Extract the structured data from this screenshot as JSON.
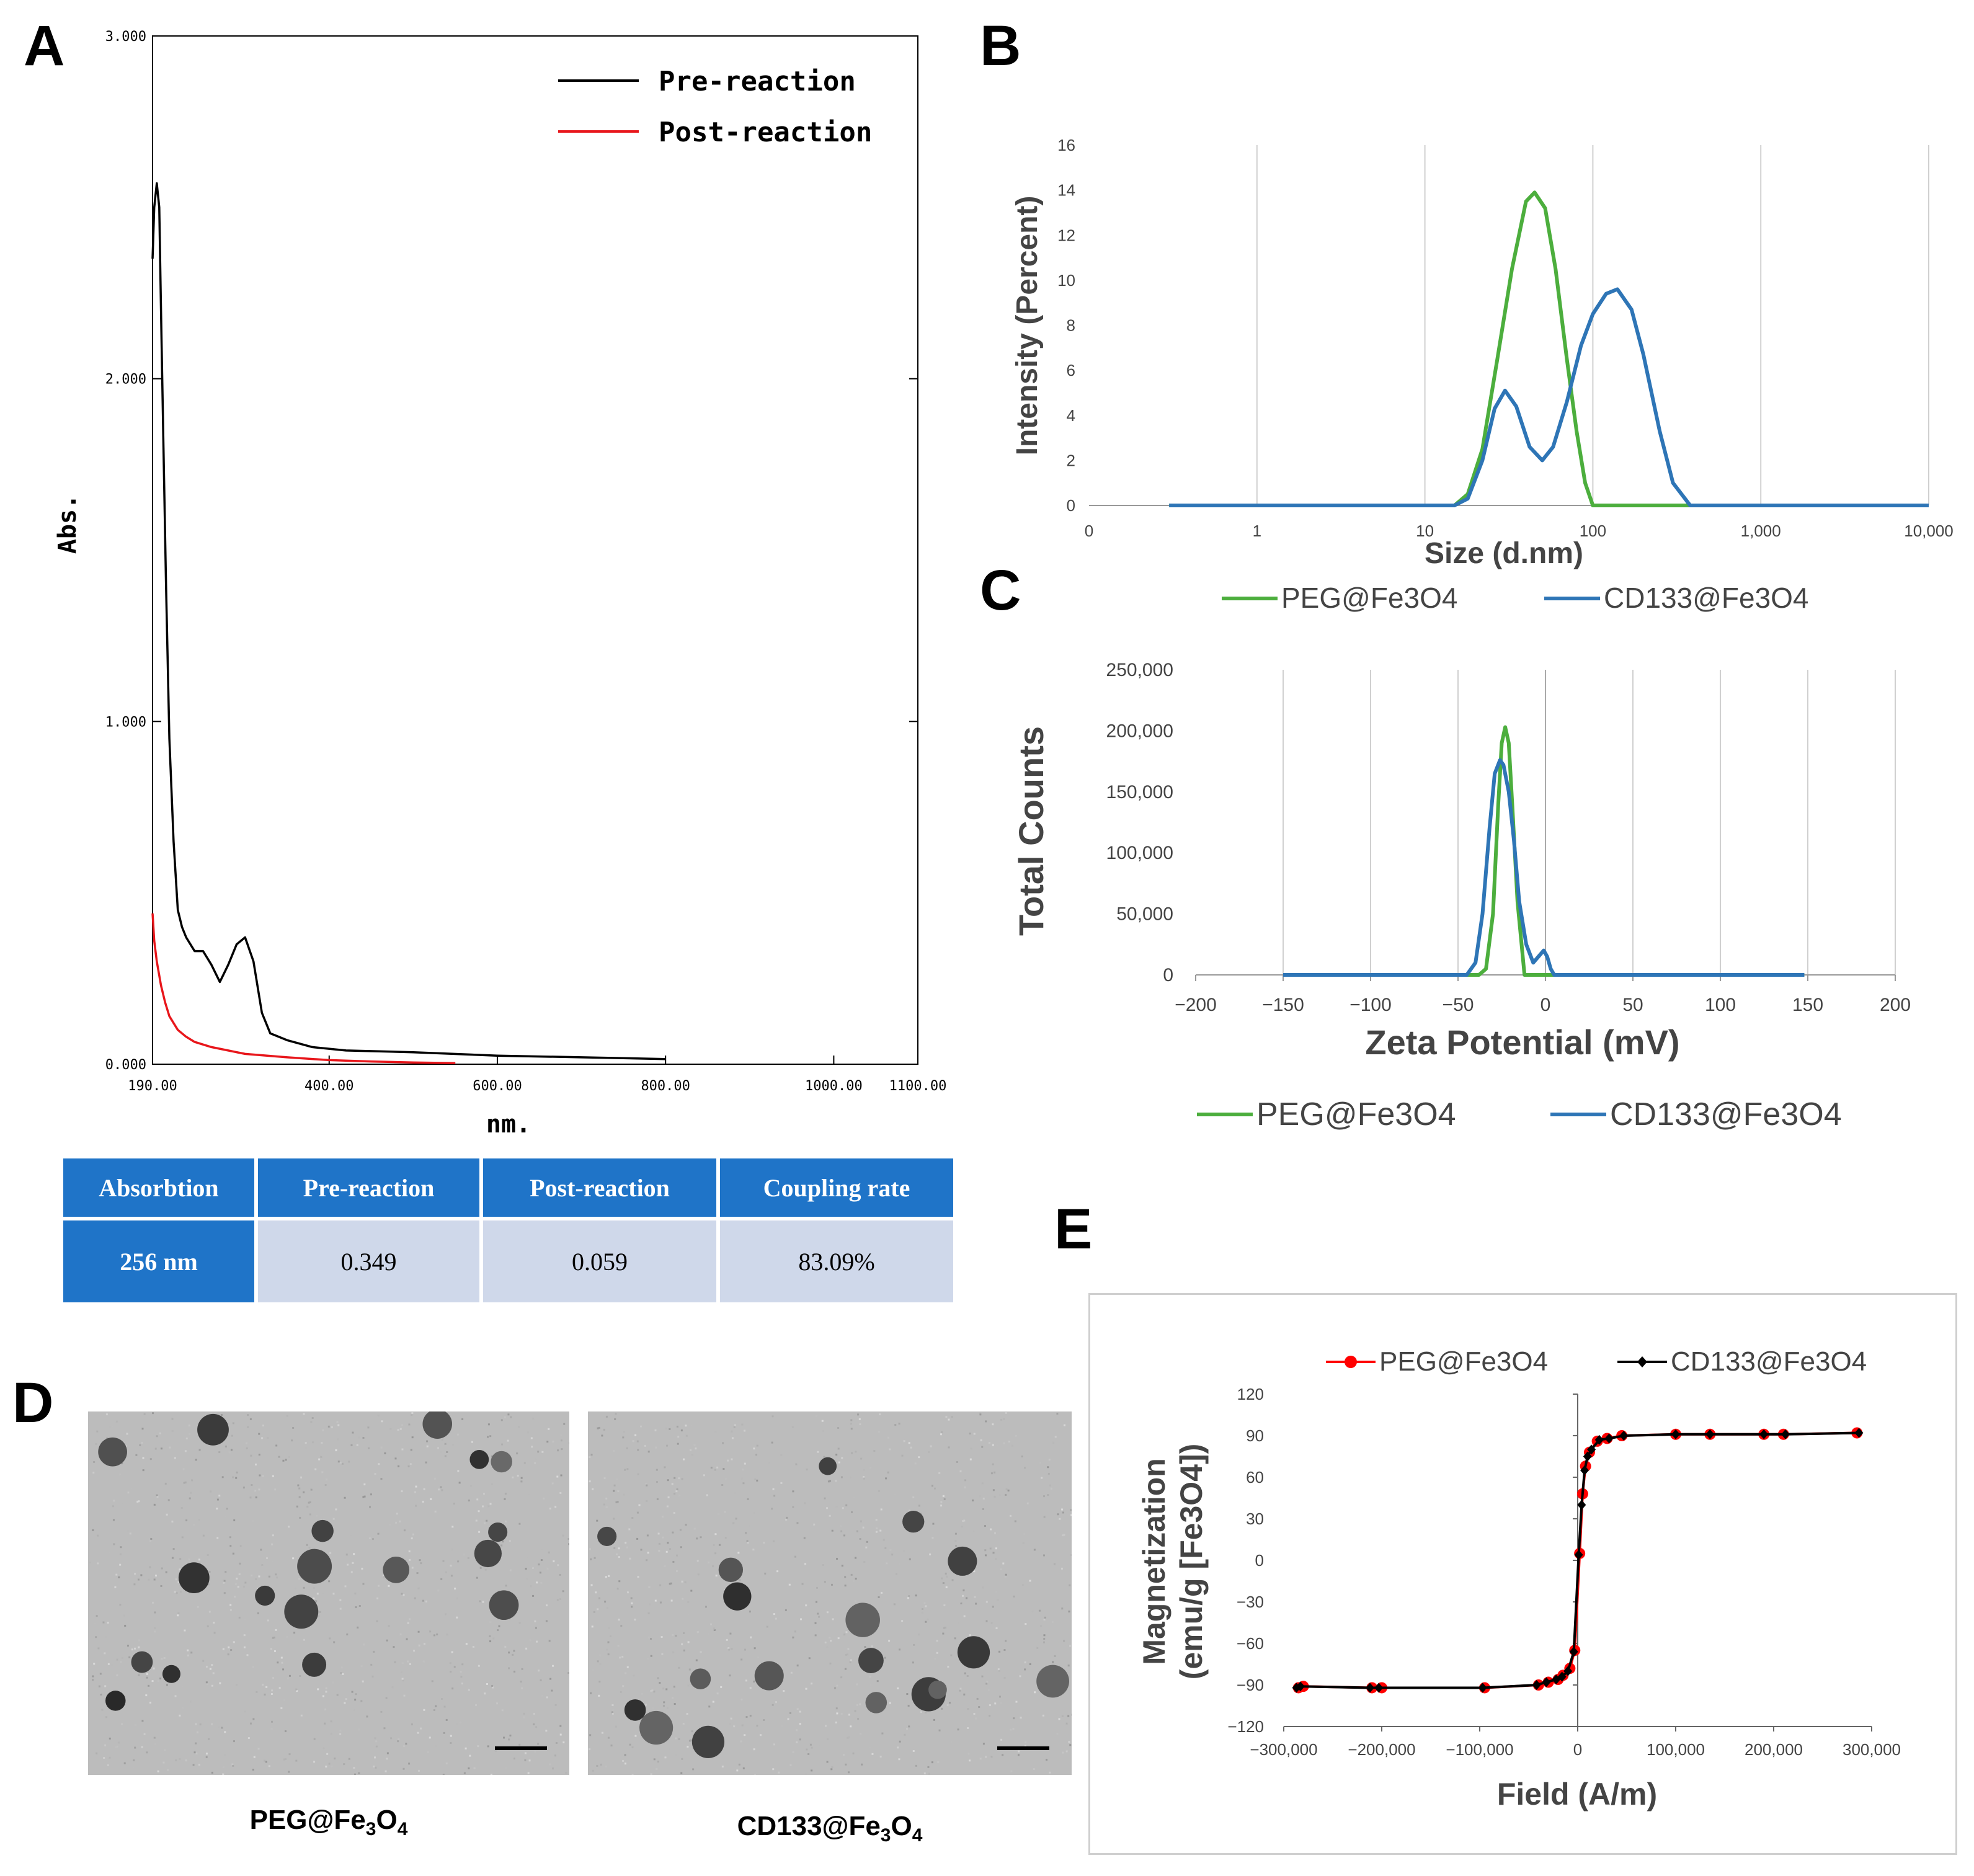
{
  "panels": {
    "a": {
      "label": "A",
      "chart_data": {
        "type": "line",
        "xlabel": "nm.",
        "ylabel": "Abs.",
        "x_ticks": [
          "190.00",
          "400.00",
          "600.00",
          "800.00",
          "1000.00",
          "1100.00"
        ],
        "x_tick_values": [
          190,
          400,
          600,
          800,
          1000,
          1100
        ],
        "y_ticks": [
          "0.000",
          "1.000",
          "2.000",
          "3.000"
        ],
        "y_tick_values": [
          0,
          1,
          2,
          3
        ],
        "xlim": [
          190,
          1100
        ],
        "ylim": [
          0,
          3
        ],
        "legend": [
          "Pre-reaction",
          "Post-reaction"
        ],
        "series": [
          {
            "name": "Pre-reaction",
            "color": "#000000",
            "x": [
              190,
              192,
              195,
              198,
              200,
              203,
              206,
              210,
              215,
              220,
              225,
              230,
              235,
              240,
              250,
              260,
              270,
              280,
              290,
              300,
              310,
              320,
              330,
              350,
              380,
              420,
              500,
              600,
              700,
              800
            ],
            "y": [
              2.35,
              2.5,
              2.57,
              2.5,
              2.2,
              1.8,
              1.4,
              0.95,
              0.65,
              0.45,
              0.4,
              0.37,
              0.35,
              0.33,
              0.33,
              0.29,
              0.24,
              0.29,
              0.35,
              0.37,
              0.3,
              0.15,
              0.09,
              0.07,
              0.05,
              0.04,
              0.035,
              0.025,
              0.02,
              0.015
            ]
          },
          {
            "name": "Post-reaction",
            "color": "#e8161b",
            "x": [
              190,
              192,
              195,
              200,
              205,
              210,
              220,
              230,
              240,
              260,
              280,
              300,
              350,
              400,
              450,
              500,
              550
            ],
            "y": [
              0.44,
              0.36,
              0.3,
              0.23,
              0.18,
              0.14,
              0.1,
              0.08,
              0.065,
              0.05,
              0.04,
              0.03,
              0.02,
              0.012,
              0.008,
              0.005,
              0.003
            ]
          }
        ]
      },
      "table": {
        "headers": [
          "Absorbtion",
          "Pre-reaction",
          "Post-reaction",
          "Coupling rate"
        ],
        "row": [
          "256 nm",
          "0.349",
          "0.059",
          "83.09%"
        ]
      }
    },
    "b": {
      "label": "B",
      "chart_data": {
        "type": "line",
        "xscale": "log",
        "xlabel": "Size (d.nm)",
        "ylabel": "Intensity (Percent)",
        "x_ticks": [
          "0",
          "1",
          "10",
          "100",
          "1,000",
          "10,000"
        ],
        "y_ticks": [
          "0",
          "2",
          "4",
          "6",
          "8",
          "10",
          "12",
          "14",
          "16"
        ],
        "ylim": [
          0,
          16
        ],
        "legend": [
          "PEG@Fe3O4",
          "CD133@Fe3O4"
        ],
        "series": [
          {
            "name": "PEG@Fe3O4",
            "color": "#4cae3d",
            "x": [
              0.3,
              10,
              15,
              18,
              22,
              27,
              33,
              40,
              45,
              52,
              60,
              70,
              80,
              90,
              100,
              3000,
              10000
            ],
            "y": [
              0,
              0,
              0,
              0.5,
              2.5,
              6.5,
              10.5,
              13.5,
              13.9,
              13.2,
              10.5,
              6.5,
              3.3,
              1.0,
              0,
              0,
              0
            ]
          },
          {
            "name": "CD133@Fe3O4",
            "color": "#2e75b6",
            "x": [
              0.3,
              10,
              15,
              18,
              22,
              26,
              30,
              35,
              42,
              50,
              58,
              70,
              85,
              100,
              120,
              140,
              170,
              200,
              250,
              300,
              380,
              3000,
              10000
            ],
            "y": [
              0,
              0,
              0,
              0.3,
              2.0,
              4.3,
              5.1,
              4.4,
              2.6,
              2.0,
              2.6,
              4.6,
              7.1,
              8.5,
              9.4,
              9.6,
              8.7,
              6.7,
              3.3,
              1.0,
              0,
              0,
              0
            ]
          }
        ]
      }
    },
    "c": {
      "label": "C",
      "chart_data": {
        "type": "line",
        "xlabel": "Zeta Potential (mV)",
        "ylabel": "Total Counts",
        "x_ticks": [
          "−200",
          "−150",
          "−100",
          "−50",
          "0",
          "50",
          "100",
          "150",
          "200"
        ],
        "x_tick_values": [
          -200,
          -150,
          -100,
          -50,
          0,
          50,
          100,
          150,
          200
        ],
        "y_ticks": [
          "0",
          "50,000",
          "100,000",
          "150,000",
          "200,000",
          "250,000"
        ],
        "y_tick_values": [
          0,
          50000,
          100000,
          150000,
          200000,
          250000
        ],
        "xlim": [
          -200,
          200
        ],
        "ylim": [
          0,
          250000
        ],
        "legend": [
          "PEG@Fe3O4",
          "CD133@Fe3O4"
        ],
        "series": [
          {
            "name": "PEG@Fe3O4",
            "color": "#4cae3d",
            "x": [
              -150,
              -38,
              -34,
              -30,
              -27,
              -25,
              -23,
              -21,
              -19,
              -16,
              -12,
              148
            ],
            "y": [
              0,
              0,
              5000,
              50000,
              140000,
              190000,
              203000,
              190000,
              140000,
              60000,
              0,
              0
            ]
          },
          {
            "name": "CD133@Fe3O4",
            "color": "#2e75b6",
            "x": [
              -150,
              -45,
              -40,
              -36,
              -32,
              -29,
              -26,
              -24,
              -21,
              -18,
              -15,
              -11,
              -7,
              -4,
              -1,
              1,
              3,
              5,
              148
            ],
            "y": [
              0,
              0,
              10000,
              50000,
              120000,
              165000,
              176000,
              172000,
              150000,
              110000,
              60000,
              25000,
              10000,
              15000,
              20000,
              15000,
              5000,
              0,
              0
            ]
          }
        ]
      }
    },
    "d": {
      "label": "D",
      "captions": [
        {
          "base": "PEG@Fe",
          "sub1": "3",
          "mid": "O",
          "sub2": "4"
        },
        {
          "base": "CD133@Fe",
          "sub1": "3",
          "mid": "O",
          "sub2": "4"
        }
      ]
    },
    "e": {
      "label": "E",
      "chart_data": {
        "type": "line",
        "xlabel": "Field (A/m)",
        "ylabel_line1": "Magnetization",
        "ylabel_line2": "(emu/g [Fe3O4])",
        "x_ticks": [
          "−300,000",
          "−200,000",
          "−100,000",
          "0",
          "100,000",
          "200,000",
          "300,000"
        ],
        "x_tick_values": [
          -300000,
          -200000,
          -100000,
          0,
          100000,
          200000,
          300000
        ],
        "y_ticks": [
          "−120",
          "−90",
          "−60",
          "−30",
          "0",
          "30",
          "60",
          "90",
          "120"
        ],
        "y_tick_values": [
          -120,
          -90,
          -60,
          -30,
          0,
          30,
          60,
          90,
          120
        ],
        "xlim": [
          -300000,
          300000
        ],
        "ylim": [
          -120,
          120
        ],
        "legend": [
          "PEG@Fe3O4",
          "CD133@Fe3O4"
        ],
        "series": [
          {
            "name": "PEG@Fe3O4",
            "color": "#ff0000",
            "marker": "circle",
            "x": [
              -285000,
              -280000,
              -210000,
              -200000,
              -95000,
              -40000,
              -30000,
              -20000,
              -15000,
              -8000,
              -3000,
              2000,
              5000,
              8000,
              12000,
              20000,
              30000,
              45000,
              100000,
              135000,
              190000,
              210000,
              285000
            ],
            "y": [
              -92,
              -91,
              -92,
              -92,
              -92,
              -90,
              -88,
              -86,
              -83,
              -78,
              -65,
              5,
              48,
              68,
              78,
              86,
              88,
              90,
              91,
              91,
              91,
              91,
              92
            ]
          },
          {
            "name": "CD133@Fe3O4",
            "color": "#000000",
            "marker": "diamond",
            "x": [
              -287000,
              -283000,
              -212000,
              -203000,
              -97000,
              -42000,
              -32000,
              -22000,
              -16000,
              -10000,
              -4000,
              1000,
              4000,
              7000,
              10000,
              14000,
              22000,
              32000,
              47000,
              100000,
              135000,
              190000,
              212000,
              287000
            ],
            "y": [
              -92,
              -91,
              -92,
              -92,
              -92,
              -90,
              -88,
              -86,
              -84,
              -80,
              -66,
              4,
              40,
              65,
              75,
              80,
              87,
              88,
              90,
              91,
              91,
              91,
              91,
              92
            ]
          }
        ]
      }
    }
  }
}
